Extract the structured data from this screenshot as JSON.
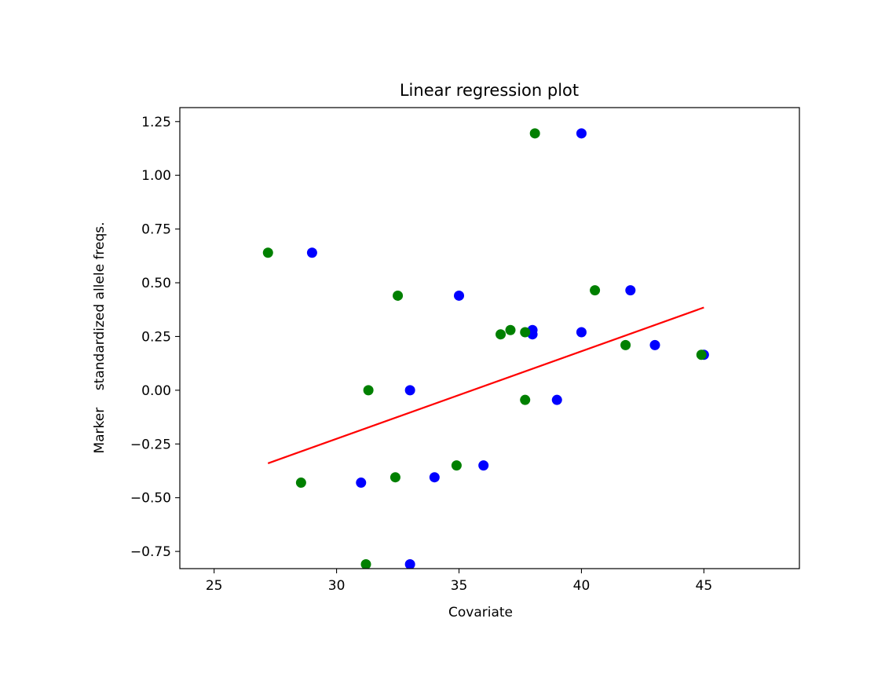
{
  "chart_data": {
    "type": "scatter",
    "title": "Linear regression plot",
    "xlabel": "Covariate",
    "ylabel": "Marker    standardized allele freqs.",
    "xlim": [
      23.6,
      48.9
    ],
    "ylim": [
      -0.83,
      1.315
    ],
    "xticks": [
      25,
      30,
      35,
      40,
      45
    ],
    "xtick_labels": [
      "25",
      "30",
      "35",
      "40",
      "45"
    ],
    "yticks": [
      -0.75,
      -0.5,
      -0.25,
      0.0,
      0.25,
      0.5,
      0.75,
      1.0,
      1.25
    ],
    "ytick_labels": [
      "−0.75",
      "−0.50",
      "−0.25",
      "0.00",
      "0.25",
      "0.50",
      "0.75",
      "1.00",
      "1.25"
    ],
    "grid": false,
    "series": [
      {
        "color": "#0000ff",
        "x": [
          29.0,
          31.0,
          33.0,
          33.0,
          34.0,
          35.0,
          36.0,
          38.0,
          38.0,
          39.0,
          40.0,
          40.0,
          42.0,
          43.0,
          45.0
        ],
        "y": [
          0.64,
          -0.43,
          -0.81,
          0.0,
          -0.405,
          0.44,
          -0.35,
          0.28,
          0.26,
          -0.045,
          1.195,
          0.27,
          0.465,
          0.21,
          0.165
        ]
      },
      {
        "color": "#008000",
        "x": [
          27.2,
          28.55,
          31.2,
          31.3,
          32.4,
          32.5,
          34.9,
          36.7,
          37.1,
          37.7,
          37.7,
          38.1,
          40.55,
          41.8,
          44.9
        ],
        "y": [
          0.64,
          -0.43,
          -0.81,
          0.0,
          -0.405,
          0.44,
          -0.35,
          0.26,
          0.28,
          -0.045,
          0.27,
          1.195,
          0.465,
          0.21,
          0.165
        ]
      }
    ],
    "regression_line": {
      "color": "#ff0000",
      "x": [
        27.2,
        45.0
      ],
      "y": [
        -0.34,
        0.385
      ]
    }
  }
}
